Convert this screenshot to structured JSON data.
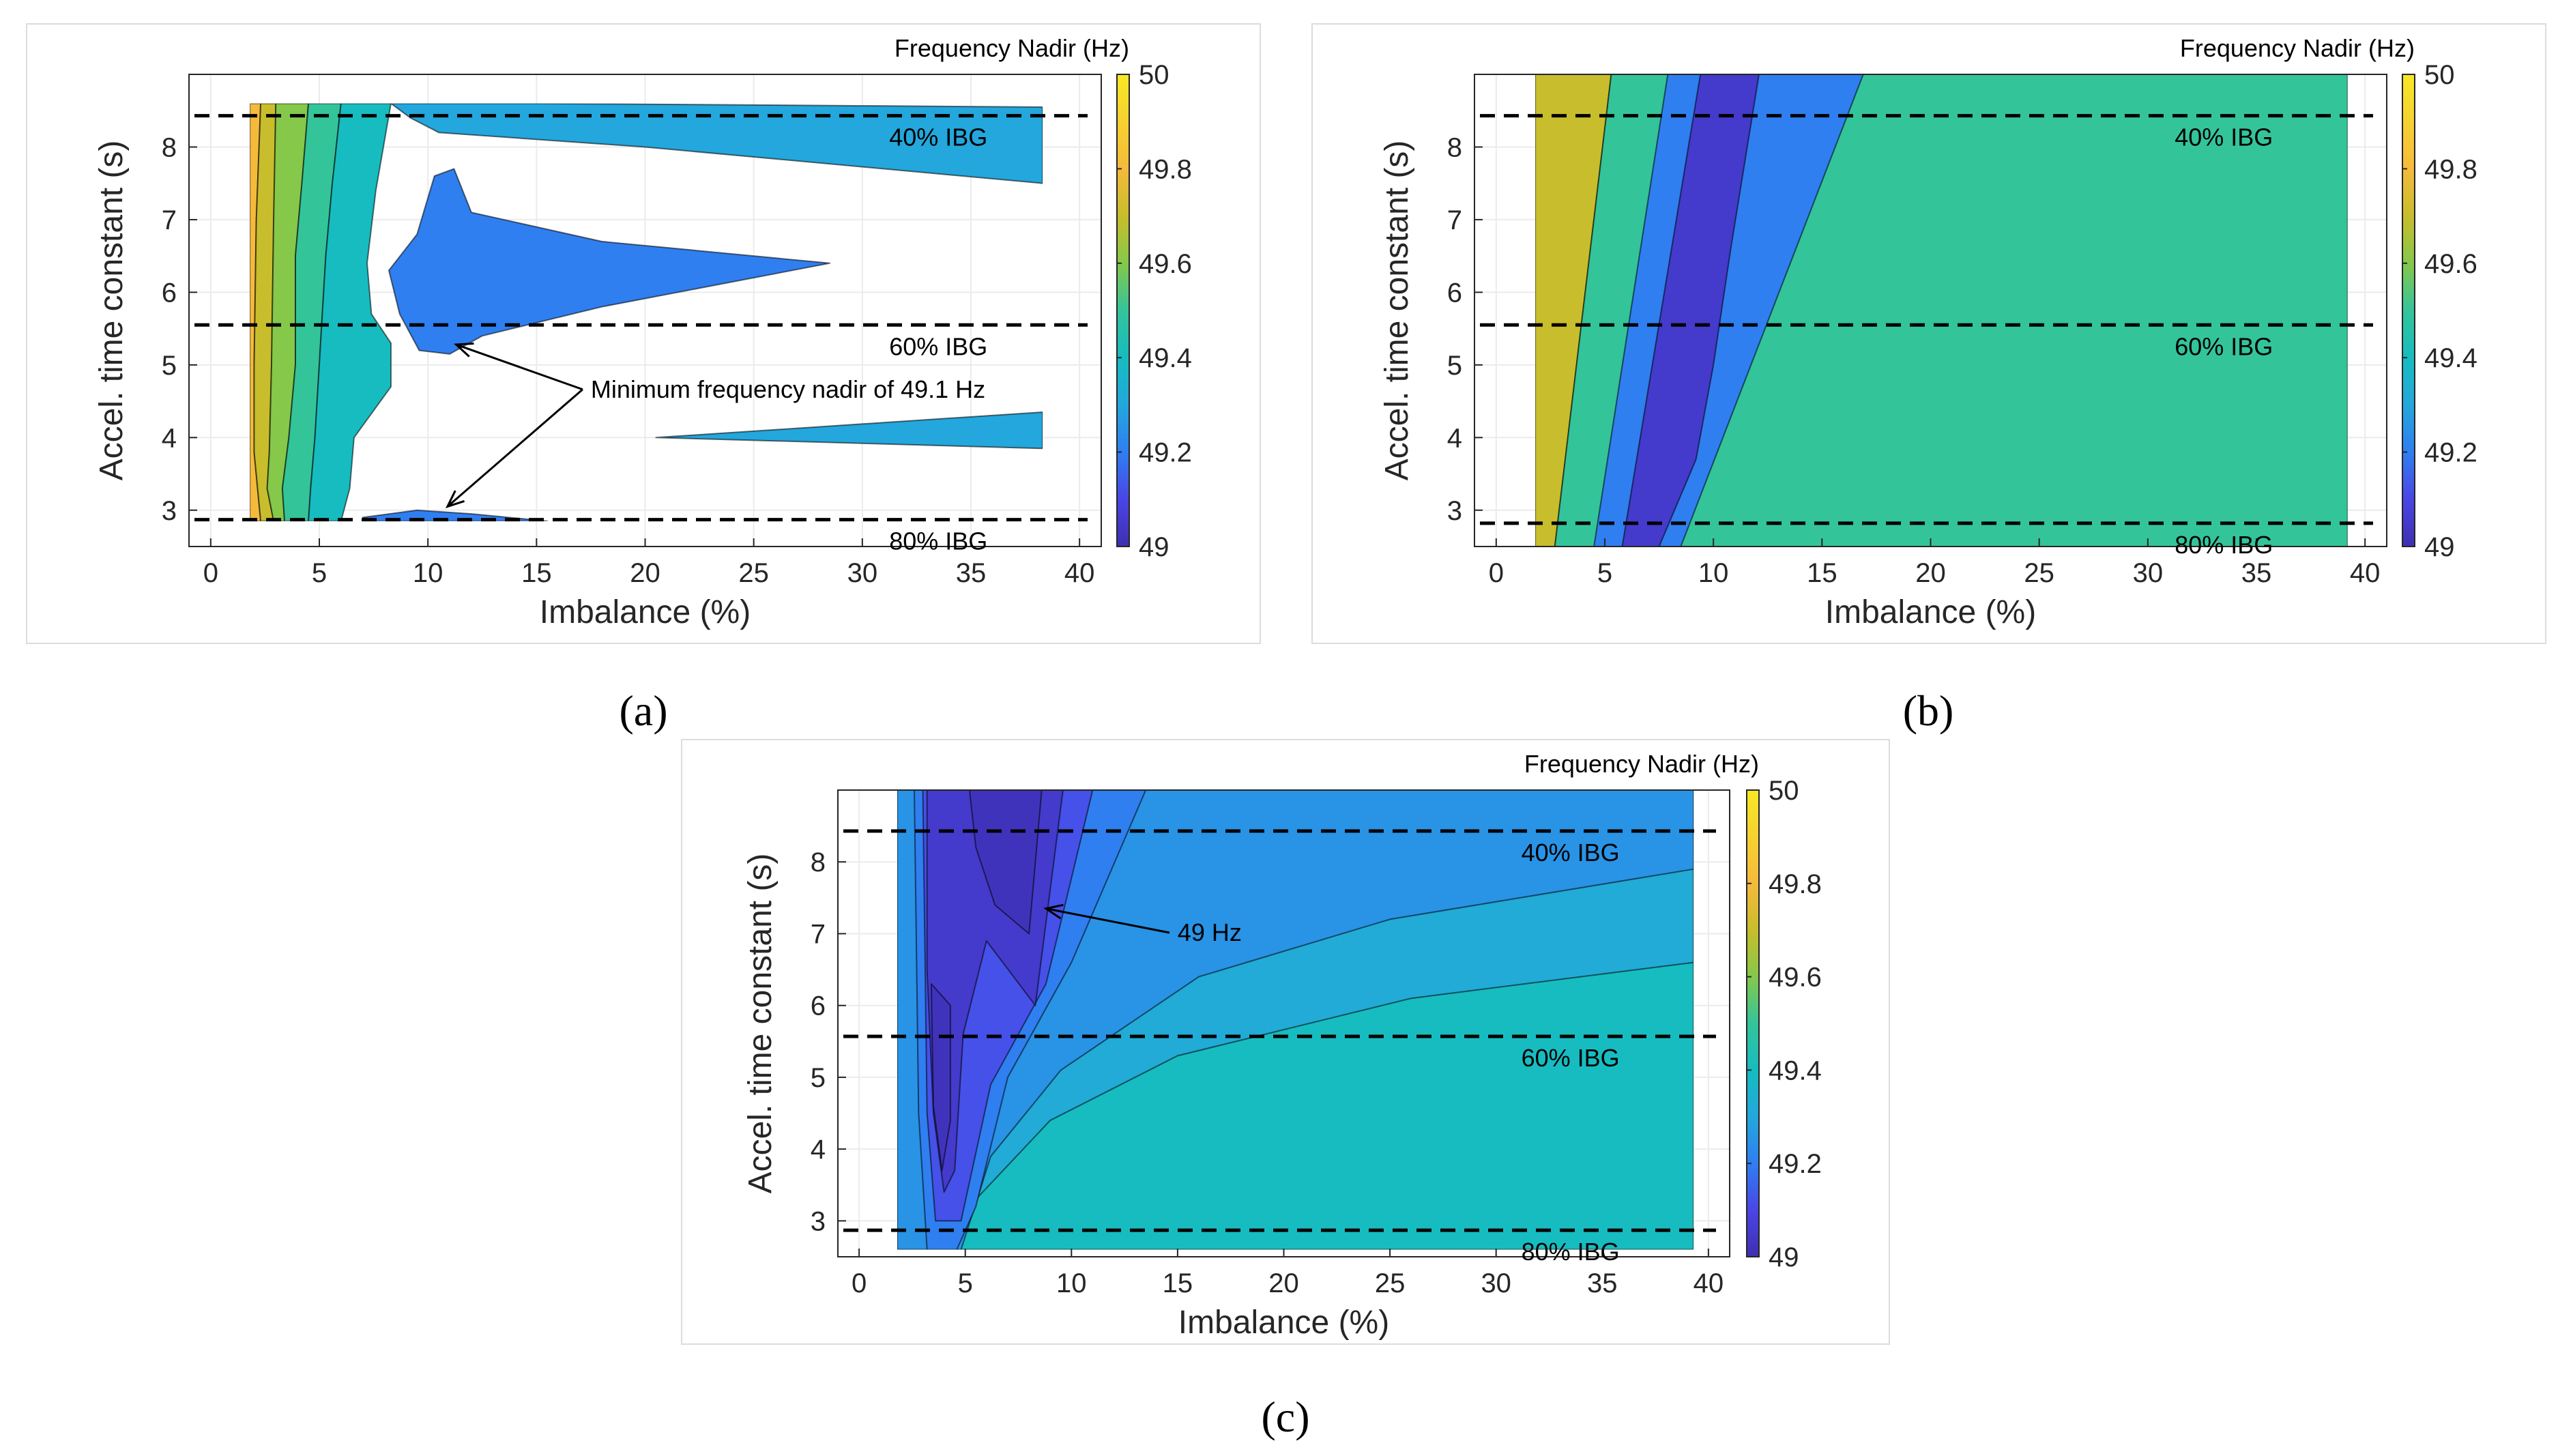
{
  "figure_labels": {
    "a": "(a)",
    "b": "(b)",
    "c": "(c)"
  },
  "colors": {
    "c49_0": "#3e2fb0",
    "c49_1": "#4a45e6",
    "c49_2": "#2f7ff0",
    "c49_3": "#23a7dc",
    "c49_4": "#17bcc0",
    "c49_5": "#34c49a",
    "c49_6": "#85c84a",
    "c49_7": "#c8bd2c",
    "c49_8": "#f5ba3c",
    "c49_9": "#f7e825"
  },
  "chart_data": [
    {
      "id": "a",
      "type": "contour",
      "xlabel": "Imbalance (%)",
      "ylabel": "Accel. time constant (s)",
      "xlim": [
        -1,
        41
      ],
      "ylim": [
        2.5,
        9
      ],
      "xticks": [
        0,
        5,
        10,
        15,
        20,
        25,
        30,
        35,
        40
      ],
      "xtick_labels": [
        "0",
        "5",
        "10",
        "15",
        "20",
        "25",
        "30",
        "35",
        "40"
      ],
      "yticks": [
        3,
        4,
        5,
        6,
        7,
        8
      ],
      "ytick_labels": [
        "3",
        "4",
        "5",
        "6",
        "7",
        "8"
      ],
      "data_extent": {
        "x": [
          1.8,
          38.3
        ],
        "y": [
          2.85,
          8.6
        ]
      },
      "colorbar": {
        "title": "Frequency Nadir (Hz)",
        "range": [
          49,
          50
        ],
        "ticks": [
          "50",
          "49.8",
          "49.6",
          "49.4",
          "49.2",
          "49"
        ]
      },
      "bands": [
        {
          "level": 49.8,
          "polygon": [
            [
              1.8,
              8.6
            ],
            [
              2.3,
              8.6
            ],
            [
              2.1,
              7
            ],
            [
              2.0,
              5
            ],
            [
              2.0,
              3.8
            ],
            [
              2.3,
              2.85
            ],
            [
              1.8,
              2.85
            ]
          ]
        },
        {
          "level": 49.7,
          "polygon": [
            [
              2.3,
              8.6
            ],
            [
              3.0,
              8.6
            ],
            [
              2.9,
              7
            ],
            [
              2.8,
              5
            ],
            [
              2.7,
              3.8
            ],
            [
              2.6,
              3.3
            ],
            [
              2.9,
              2.85
            ],
            [
              2.3,
              2.85
            ],
            [
              2.0,
              3.8
            ],
            [
              2.0,
              5
            ],
            [
              2.1,
              7
            ]
          ]
        },
        {
          "level": 49.6,
          "polygon": [
            [
              3.0,
              8.6
            ],
            [
              4.5,
              8.6
            ],
            [
              4.2,
              7.5
            ],
            [
              3.9,
              6.5
            ],
            [
              3.9,
              5
            ],
            [
              3.6,
              4
            ],
            [
              3.3,
              3.3
            ],
            [
              3.4,
              2.85
            ],
            [
              2.9,
              2.85
            ],
            [
              2.6,
              3.3
            ],
            [
              2.7,
              3.8
            ],
            [
              2.8,
              5
            ],
            [
              2.9,
              7
            ]
          ]
        },
        {
          "level": 49.5,
          "polygon": [
            [
              4.5,
              8.6
            ],
            [
              6.0,
              8.6
            ],
            [
              5.6,
              7.5
            ],
            [
              5.3,
              6.5
            ],
            [
              5.0,
              5
            ],
            [
              4.8,
              4
            ],
            [
              4.6,
              3.3
            ],
            [
              4.5,
              2.85
            ],
            [
              3.4,
              2.85
            ],
            [
              3.3,
              3.3
            ],
            [
              3.6,
              4
            ],
            [
              3.9,
              5
            ],
            [
              3.9,
              6.5
            ],
            [
              4.2,
              7.5
            ]
          ]
        },
        {
          "level": 49.4,
          "polygon": [
            [
              6.0,
              8.6
            ],
            [
              8.3,
              8.6
            ],
            [
              7.6,
              7.4
            ],
            [
              7.2,
              6.4
            ],
            [
              7.4,
              5.7
            ],
            [
              8.3,
              5.3
            ],
            [
              8.3,
              4.7
            ],
            [
              6.6,
              4.0
            ],
            [
              6.4,
              3.3
            ],
            [
              6.0,
              2.85
            ],
            [
              4.5,
              2.85
            ],
            [
              4.6,
              3.3
            ],
            [
              4.8,
              4
            ],
            [
              5.0,
              5
            ],
            [
              5.3,
              6.5
            ],
            [
              5.6,
              7.5
            ]
          ]
        },
        {
          "level": 49.3,
          "polygon": [
            [
              8.3,
              8.6
            ],
            [
              15.0,
              8.6
            ],
            [
              38.3,
              8.55
            ],
            [
              38.3,
              7.5
            ],
            [
              20,
              8.0
            ],
            [
              10.5,
              8.2
            ],
            [
              9.2,
              8.4
            ]
          ]
        },
        {
          "level": 49.3,
          "polygon": [
            [
              20.5,
              4.0
            ],
            [
              38.3,
              4.35
            ],
            [
              38.3,
              3.85
            ]
          ]
        },
        {
          "level": 49.2,
          "polygon": [
            [
              9.5,
              6.8
            ],
            [
              10.3,
              7.6
            ],
            [
              11.2,
              7.7
            ],
            [
              12.0,
              7.1
            ],
            [
              18.0,
              6.7
            ],
            [
              28.5,
              6.4
            ],
            [
              18.0,
              5.8
            ],
            [
              12.5,
              5.4
            ],
            [
              11.0,
              5.15
            ],
            [
              9.6,
              5.2
            ],
            [
              8.7,
              5.7
            ],
            [
              8.2,
              6.3
            ]
          ]
        },
        {
          "level": 49.2,
          "polygon": [
            [
              7.0,
              2.9
            ],
            [
              9.5,
              3.0
            ],
            [
              12.0,
              2.95
            ],
            [
              15.5,
              2.85
            ],
            [
              7.0,
              2.85
            ]
          ]
        }
      ],
      "reference_lines": [
        {
          "y": 8.43,
          "label": "40% IBG"
        },
        {
          "y": 5.55,
          "label": "60% IBG"
        },
        {
          "y": 2.87,
          "label": "80% IBG"
        }
      ],
      "annotations": [
        {
          "text": "Minimum frequency nadir of 49.1 Hz",
          "text_at": [
            17.5,
            4.55
          ],
          "arrows": [
            [
              11.3,
              5.28
            ],
            [
              10.9,
              3.05
            ]
          ]
        }
      ]
    },
    {
      "id": "b",
      "type": "contour",
      "xlabel": "Imbalance (%)",
      "ylabel": "Accel. time constant (s)",
      "xlim": [
        -1,
        41
      ],
      "ylim": [
        2.5,
        9
      ],
      "xticks": [
        0,
        5,
        10,
        15,
        20,
        25,
        30,
        35,
        40
      ],
      "xtick_labels": [
        "0",
        "5",
        "10",
        "15",
        "20",
        "25",
        "30",
        "35",
        "40"
      ],
      "yticks": [
        3,
        4,
        5,
        6,
        7,
        8
      ],
      "ytick_labels": [
        "3",
        "4",
        "5",
        "6",
        "7",
        "8"
      ],
      "data_extent": {
        "x": [
          1.8,
          39.2
        ],
        "y": [
          2.5,
          9.0
        ]
      },
      "colorbar": {
        "title": "Frequency Nadir (Hz)",
        "range": [
          49,
          50
        ],
        "ticks": [
          "50",
          "49.8",
          "49.6",
          "49.4",
          "49.2",
          "49"
        ]
      },
      "bands": [
        {
          "level": 49.7,
          "polygon": [
            [
              1.8,
              9.0
            ],
            [
              5.3,
              9.0
            ],
            [
              2.7,
              2.5
            ],
            [
              1.8,
              2.5
            ]
          ]
        },
        {
          "level": 49.5,
          "polygon": [
            [
              5.3,
              9.0
            ],
            [
              39.2,
              9.0
            ],
            [
              39.2,
              2.5
            ],
            [
              2.7,
              2.5
            ]
          ]
        },
        {
          "level": 49.2,
          "polygon": [
            [
              7.9,
              9.0
            ],
            [
              16.9,
              9.0
            ],
            [
              8.5,
              2.5
            ],
            [
              4.5,
              2.5
            ]
          ]
        },
        {
          "level": 49.05,
          "polygon": [
            [
              9.4,
              9.0
            ],
            [
              12.1,
              9.0
            ],
            [
              10.8,
              6.6
            ],
            [
              10.0,
              5.0
            ],
            [
              9.2,
              3.7
            ],
            [
              7.5,
              2.5
            ],
            [
              5.8,
              2.5
            ]
          ]
        }
      ],
      "reference_lines": [
        {
          "y": 8.43,
          "label": "40% IBG"
        },
        {
          "y": 5.55,
          "label": "60% IBG"
        },
        {
          "y": 2.82,
          "label": "80% IBG"
        }
      ],
      "annotations": []
    },
    {
      "id": "c",
      "type": "contour",
      "xlabel": "Imbalance (%)",
      "ylabel": "Accel. time constant (s)",
      "xlim": [
        -1,
        41
      ],
      "ylim": [
        2.5,
        9
      ],
      "xticks": [
        0,
        5,
        10,
        15,
        20,
        25,
        30,
        35,
        40
      ],
      "xtick_labels": [
        "0",
        "5",
        "10",
        "15",
        "20",
        "25",
        "30",
        "35",
        "40"
      ],
      "yticks": [
        3,
        4,
        5,
        6,
        7,
        8
      ],
      "ytick_labels": [
        "3",
        "4",
        "5",
        "6",
        "7",
        "8"
      ],
      "data_extent": {
        "x": [
          1.8,
          39.3
        ],
        "y": [
          2.6,
          9.0
        ]
      },
      "colorbar": {
        "title": "Frequency Nadir (Hz)",
        "range": [
          49,
          50
        ],
        "ticks": [
          "50",
          "49.8",
          "49.6",
          "49.4",
          "49.2",
          "49"
        ]
      },
      "bands": [
        {
          "level": 49.4,
          "polygon": [
            [
              1.8,
              9.0
            ],
            [
              39.3,
              9.0
            ],
            [
              39.3,
              2.6
            ],
            [
              1.8,
              2.6
            ]
          ]
        },
        {
          "level": 49.32,
          "polygon": [
            [
              1.8,
              9.0
            ],
            [
              39.3,
              9.0
            ],
            [
              39.3,
              6.6
            ],
            [
              26,
              6.1
            ],
            [
              15,
              5.3
            ],
            [
              9,
              4.4
            ],
            [
              5.5,
              3.3
            ],
            [
              4.2,
              2.6
            ],
            [
              1.8,
              2.6
            ]
          ]
        },
        {
          "level": 49.25,
          "polygon": [
            [
              1.8,
              9.0
            ],
            [
              39.3,
              9.0
            ],
            [
              39.3,
              7.9
            ],
            [
              25,
              7.2
            ],
            [
              16,
              6.4
            ],
            [
              9.5,
              5.1
            ],
            [
              6.2,
              3.9
            ],
            [
              4.8,
              2.6
            ],
            [
              1.8,
              2.6
            ]
          ]
        },
        {
          "level": 49.2,
          "polygon": [
            [
              2.6,
              9.0
            ],
            [
              13.5,
              9.0
            ],
            [
              10.0,
              6.6
            ],
            [
              7.0,
              5.0
            ],
            [
              5.5,
              3.2
            ],
            [
              4.6,
              2.6
            ],
            [
              3.2,
              2.6
            ],
            [
              2.8,
              4.5
            ]
          ]
        },
        {
          "level": 49.12,
          "polygon": [
            [
              3.0,
              9.0
            ],
            [
              11.0,
              9.0
            ],
            [
              8.8,
              6.3
            ],
            [
              6.2,
              4.9
            ],
            [
              4.8,
              3.0
            ],
            [
              3.6,
              3.0
            ],
            [
              3.2,
              4.5
            ]
          ]
        },
        {
          "level": 49.05,
          "polygon": [
            [
              3.2,
              9.0
            ],
            [
              9.6,
              9.0
            ],
            [
              8.3,
              6.0
            ],
            [
              6.0,
              6.9
            ],
            [
              4.9,
              5.6
            ],
            [
              4.5,
              3.7
            ],
            [
              4.0,
              3.4
            ],
            [
              3.5,
              4.5
            ],
            [
              3.2,
              6.5
            ]
          ]
        },
        {
          "level": 49.02,
          "polygon": [
            [
              5.2,
              9.0
            ],
            [
              8.6,
              9.0
            ],
            [
              8.0,
              7.0
            ],
            [
              6.4,
              7.4
            ],
            [
              5.5,
              8.2
            ]
          ]
        },
        {
          "level": 49.02,
          "polygon": [
            [
              3.4,
              6.3
            ],
            [
              4.3,
              6.0
            ],
            [
              4.3,
              4.4
            ],
            [
              3.9,
              3.7
            ],
            [
              3.5,
              4.6
            ]
          ]
        }
      ],
      "reference_lines": [
        {
          "y": 8.43,
          "label": "40% IBG"
        },
        {
          "y": 5.57,
          "label": "60% IBG"
        },
        {
          "y": 2.87,
          "label": "80% IBG"
        }
      ],
      "annotations": [
        {
          "text": "49 Hz",
          "text_at": [
            15.0,
            6.9
          ],
          "arrows": [
            [
              8.8,
              7.35
            ]
          ]
        }
      ]
    }
  ]
}
